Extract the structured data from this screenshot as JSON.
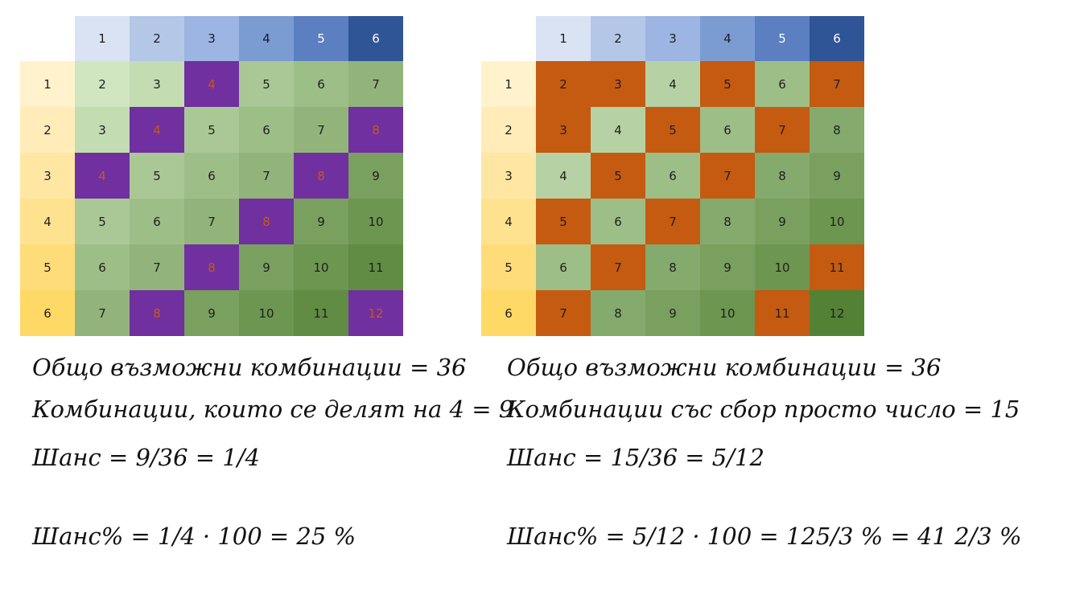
{
  "tables": [
    {
      "column_headers": [
        1,
        2,
        3,
        4,
        5,
        6
      ],
      "row_headers": [
        1,
        2,
        3,
        4,
        5,
        6
      ],
      "rows": [
        [
          2,
          3,
          4,
          5,
          6,
          7
        ],
        [
          3,
          4,
          5,
          6,
          7,
          8
        ],
        [
          4,
          5,
          6,
          7,
          8,
          9
        ],
        [
          5,
          6,
          7,
          8,
          9,
          10
        ],
        [
          6,
          7,
          8,
          9,
          10,
          11
        ],
        [
          7,
          8,
          9,
          10,
          11,
          12
        ]
      ],
      "highlighted": [
        [
          false,
          false,
          true,
          false,
          false,
          false
        ],
        [
          false,
          true,
          false,
          false,
          false,
          true
        ],
        [
          true,
          false,
          false,
          false,
          true,
          false
        ],
        [
          false,
          false,
          false,
          true,
          false,
          false
        ],
        [
          false,
          false,
          true,
          false,
          false,
          false
        ],
        [
          false,
          true,
          false,
          false,
          false,
          true
        ]
      ],
      "highlight_color": "#7030a0",
      "highlight_text_color": "#c55a11"
    },
    {
      "column_headers": [
        1,
        2,
        3,
        4,
        5,
        6
      ],
      "row_headers": [
        1,
        2,
        3,
        4,
        5,
        6
      ],
      "rows": [
        [
          2,
          3,
          4,
          5,
          6,
          7
        ],
        [
          3,
          4,
          5,
          6,
          7,
          8
        ],
        [
          4,
          5,
          6,
          7,
          8,
          9
        ],
        [
          5,
          6,
          7,
          8,
          9,
          10
        ],
        [
          6,
          7,
          8,
          9,
          10,
          11
        ],
        [
          7,
          8,
          9,
          10,
          11,
          12
        ]
      ],
      "highlighted": [
        [
          true,
          true,
          false,
          true,
          false,
          true
        ],
        [
          true,
          false,
          true,
          false,
          true,
          false
        ],
        [
          false,
          true,
          false,
          true,
          false,
          false
        ],
        [
          true,
          false,
          true,
          false,
          false,
          false
        ],
        [
          false,
          true,
          false,
          false,
          false,
          true
        ],
        [
          true,
          false,
          false,
          false,
          true,
          false
        ]
      ],
      "highlight_color": "#c55a11",
      "highlight_text_color": "#1f1f1f"
    }
  ],
  "notes": [
    {
      "lines": [
        "Общо възможни комбинации = 36",
        "Комбинации, които се делят на 4 = 9",
        "Шанс = 9/36 = 1/4",
        "Шанс% = 1/4 · 100 = 25 %"
      ]
    },
    {
      "lines": [
        "Общо възможни комбинации = 36",
        "Комбинации със сбор просто число = 15",
        "Шанс = 15/36 = 5/12",
        "Шанс% = 5/12 · 100 = 125/3 % = 41 2/3 %"
      ]
    }
  ]
}
